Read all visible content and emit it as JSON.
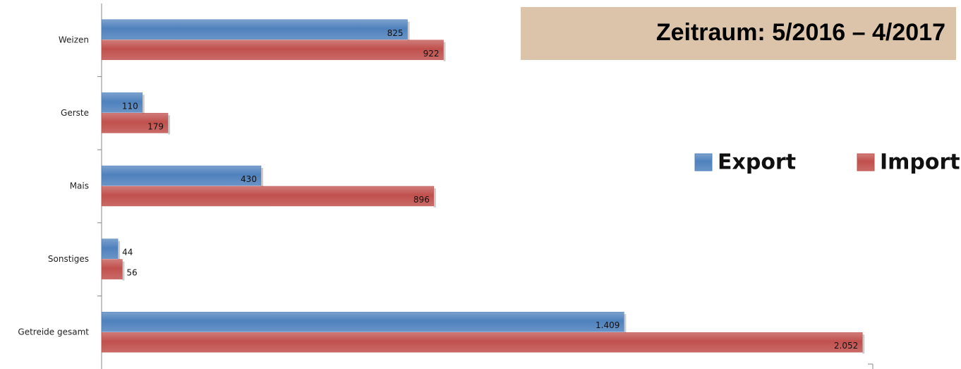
{
  "chart_data": {
    "type": "hbar",
    "annotation": "Zeitraum: 5/2016 – 4/2017",
    "categories": [
      "Weizen",
      "Gerste",
      "Mais",
      "Sonstiges",
      "Getreide gesamt"
    ],
    "series": [
      {
        "name": "Export",
        "color": "#4f81bd",
        "values": [
          825,
          110,
          430,
          44,
          1409
        ],
        "value_labels": [
          "825",
          "110",
          "430",
          "44",
          "1.409"
        ]
      },
      {
        "name": "Import",
        "color": "#c0504d",
        "values": [
          922,
          179,
          896,
          56,
          2052
        ],
        "value_labels": [
          "922",
          "179",
          "896",
          "56",
          "2.052"
        ]
      }
    ],
    "xlim": [
      0,
      2080
    ],
    "legend": "right",
    "grid": false
  }
}
